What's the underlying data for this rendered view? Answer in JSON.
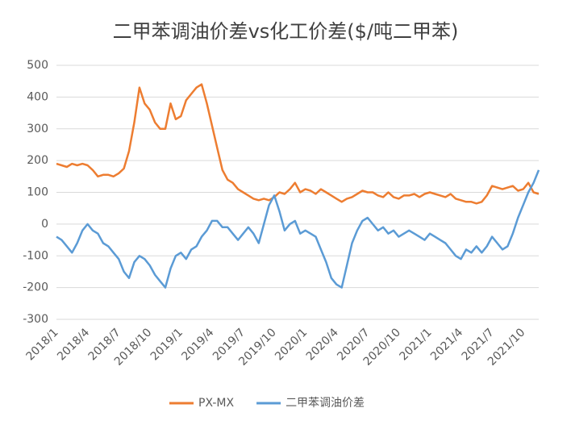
{
  "chart_data": {
    "type": "line",
    "title": "二甲苯调油价差vs化工价差($/吨二甲苯)",
    "categories": [
      "2018/1",
      null,
      null,
      null,
      null,
      null,
      "2018/4",
      null,
      null,
      null,
      null,
      null,
      "2018/7",
      null,
      null,
      null,
      null,
      null,
      "2018/10",
      null,
      null,
      null,
      null,
      null,
      "2019/1",
      null,
      null,
      null,
      null,
      null,
      "2019/4",
      null,
      null,
      null,
      null,
      null,
      "2019/7",
      null,
      null,
      null,
      null,
      null,
      "2019/10",
      null,
      null,
      null,
      null,
      null,
      "2020/1",
      null,
      null,
      null,
      null,
      null,
      "2020/4",
      null,
      null,
      null,
      null,
      null,
      "2020/7",
      null,
      null,
      null,
      null,
      null,
      "2020/10",
      null,
      null,
      null,
      null,
      null,
      "2021/1",
      null,
      null,
      null,
      null,
      null,
      "2021/4",
      null,
      null,
      null,
      null,
      null,
      "2021/7",
      null,
      null,
      null,
      null,
      null,
      "2021/10",
      null,
      null,
      null
    ],
    "series": [
      {
        "name": "PX-MX",
        "color": "#ED7D31",
        "values": [
          190,
          185,
          180,
          190,
          185,
          190,
          185,
          170,
          150,
          155,
          155,
          150,
          160,
          175,
          230,
          320,
          430,
          380,
          360,
          320,
          300,
          300,
          380,
          330,
          340,
          390,
          410,
          430,
          440,
          380,
          310,
          240,
          170,
          140,
          130,
          110,
          100,
          90,
          80,
          75,
          80,
          75,
          85,
          100,
          95,
          110,
          130,
          100,
          110,
          105,
          95,
          110,
          100,
          90,
          80,
          70,
          80,
          85,
          95,
          105,
          100,
          100,
          90,
          85,
          100,
          85,
          80,
          90,
          90,
          95,
          85,
          95,
          100,
          95,
          90,
          85,
          95,
          80,
          75,
          70,
          70,
          65,
          70,
          90,
          120,
          115,
          110,
          115,
          120,
          105,
          110,
          130,
          100,
          95
        ]
      },
      {
        "name": "二甲苯调油价差",
        "color": "#5B9BD5",
        "values": [
          -40,
          -50,
          -70,
          -90,
          -60,
          -20,
          0,
          -20,
          -30,
          -60,
          -70,
          -90,
          -110,
          -150,
          -170,
          -120,
          -100,
          -110,
          -130,
          -160,
          -180,
          -200,
          -140,
          -100,
          -90,
          -110,
          -80,
          -70,
          -40,
          -20,
          10,
          10,
          -10,
          -10,
          -30,
          -50,
          -30,
          -10,
          -30,
          -60,
          0,
          60,
          90,
          40,
          -20,
          0,
          10,
          -30,
          -20,
          -30,
          -40,
          -80,
          -120,
          -170,
          -190,
          -200,
          -130,
          -60,
          -20,
          10,
          20,
          0,
          -20,
          -10,
          -30,
          -20,
          -40,
          -30,
          -20,
          -30,
          -40,
          -50,
          -30,
          -40,
          -50,
          -60,
          -80,
          -100,
          -110,
          -80,
          -90,
          -70,
          -90,
          -70,
          -40,
          -60,
          -80,
          -70,
          -30,
          20,
          60,
          100,
          130,
          170
        ]
      }
    ],
    "ylim": [
      -300,
      500
    ],
    "yticks": [
      -300,
      -200,
      -100,
      0,
      100,
      200,
      300,
      400,
      500
    ],
    "grid": true,
    "legend": "bottom"
  }
}
